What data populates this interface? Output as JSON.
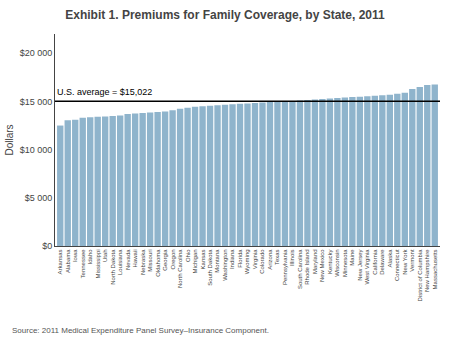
{
  "chart_data": {
    "type": "bar",
    "title": "Exhibit 1. Premiums for Family Coverage, by State, 2011",
    "ylabel": "Dollars",
    "source": "Source: 2011 Medical Expenditure Panel Survey–Insurance Component.",
    "average": {
      "value": 15022,
      "label": "U.S. average = $15,022",
      "color": "#000000"
    },
    "color": "#8fb4cc",
    "grid": false,
    "ylim": [
      0,
      22000
    ],
    "yticks": [
      {
        "value": 0,
        "label": "$0"
      },
      {
        "value": 5000,
        "label": "$5 000"
      },
      {
        "value": 10000,
        "label": "$10 000"
      },
      {
        "value": 15000,
        "label": "$15 000"
      },
      {
        "value": 20000,
        "label": "$20 000"
      }
    ],
    "categories": [
      "Arkansas",
      "Alabama",
      "Iowa",
      "Tennessee",
      "Idaho",
      "Mississippi",
      "Utah",
      "North Dakota",
      "Louisiana",
      "Nevada",
      "Hawaii",
      "Nebraska",
      "Missouri",
      "Oklahoma",
      "Georgia",
      "Oregon",
      "North Carolina",
      "Ohio",
      "Michigan",
      "Kansas",
      "South Dakota",
      "Montana",
      "Washington",
      "Indiana",
      "Florida",
      "Wyoming",
      "Virginia",
      "Colorado",
      "Arizona",
      "Texas",
      "Pennsylvania",
      "Illinois",
      "South Carolina",
      "Rhode Island",
      "Maryland",
      "New Mexico",
      "Kentucky",
      "Wisconsin",
      "Minnesota",
      "Maine",
      "New Jersey",
      "West Virginia",
      "California",
      "Delaware",
      "Alaska",
      "Connecticut",
      "New York",
      "Vermont",
      "District of Columbia",
      "New Hampshire",
      "Massachusetts"
    ],
    "values": [
      12500,
      13050,
      13100,
      13300,
      13350,
      13400,
      13450,
      13500,
      13550,
      13700,
      13750,
      13800,
      13850,
      13900,
      13950,
      14100,
      14250,
      14350,
      14450,
      14500,
      14550,
      14600,
      14650,
      14700,
      14750,
      14800,
      14850,
      14900,
      14950,
      14980,
      15020,
      15050,
      15100,
      15150,
      15200,
      15250,
      15300,
      15350,
      15400,
      15450,
      15500,
      15550,
      15600,
      15650,
      15700,
      15800,
      15900,
      16300,
      16500,
      16700,
      16750
    ]
  }
}
